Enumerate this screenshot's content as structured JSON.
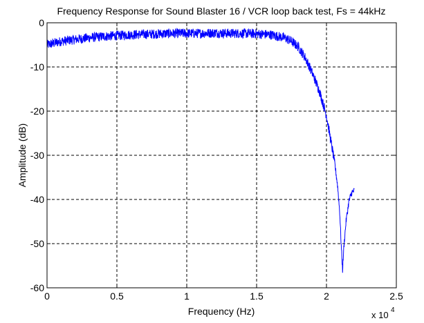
{
  "chart_data": {
    "type": "line",
    "title": "Frequency Response for Sound Blaster 16 / VCR loop back test, Fs = 44kHz",
    "xlabel": "Frequency (Hz)",
    "ylabel": "Amplitude (dB)",
    "x_multiplier_label": "x 10",
    "x_multiplier_exponent": "4",
    "xlim": [
      0,
      25000
    ],
    "ylim": [
      -60,
      0
    ],
    "grid": true,
    "x_ticks": [
      {
        "value": 0,
        "label": "0"
      },
      {
        "value": 5000,
        "label": "0.5"
      },
      {
        "value": 10000,
        "label": "1"
      },
      {
        "value": 15000,
        "label": "1.5"
      },
      {
        "value": 20000,
        "label": "2"
      },
      {
        "value": 25000,
        "label": "2.5"
      }
    ],
    "y_ticks": [
      {
        "value": 0,
        "label": "0"
      },
      {
        "value": -10,
        "label": "-10"
      },
      {
        "value": -20,
        "label": "-20"
      },
      {
        "value": -30,
        "label": "-30"
      },
      {
        "value": -40,
        "label": "-40"
      },
      {
        "value": -50,
        "label": "-50"
      },
      {
        "value": -60,
        "label": "-60"
      }
    ],
    "line_color": "#0000ff",
    "series": [
      {
        "x": [
          0,
          500,
          1000,
          2000,
          3000,
          4000,
          5000,
          6000,
          7000,
          8000,
          9000,
          10000,
          11000,
          12000,
          13000,
          14000,
          15000,
          16000,
          17000,
          17500,
          18000,
          18500,
          19000,
          19500,
          20000,
          20300,
          20600,
          20800,
          20950,
          21050,
          21150,
          21250,
          21400,
          21600,
          21800,
          22000
        ],
        "values": [
          -5.0,
          -4.6,
          -4.2,
          -3.8,
          -3.4,
          -3.1,
          -2.9,
          -2.7,
          -2.6,
          -2.5,
          -2.4,
          -2.4,
          -2.4,
          -2.3,
          -2.4,
          -2.4,
          -2.5,
          -2.7,
          -3.4,
          -4.2,
          -5.5,
          -8.0,
          -11.5,
          -15.5,
          -21.0,
          -26.5,
          -32.0,
          -37.0,
          -43.0,
          -50.0,
          -56.0,
          -50.5,
          -45.0,
          -40.5,
          -38.5,
          -38.0
        ]
      }
    ]
  }
}
